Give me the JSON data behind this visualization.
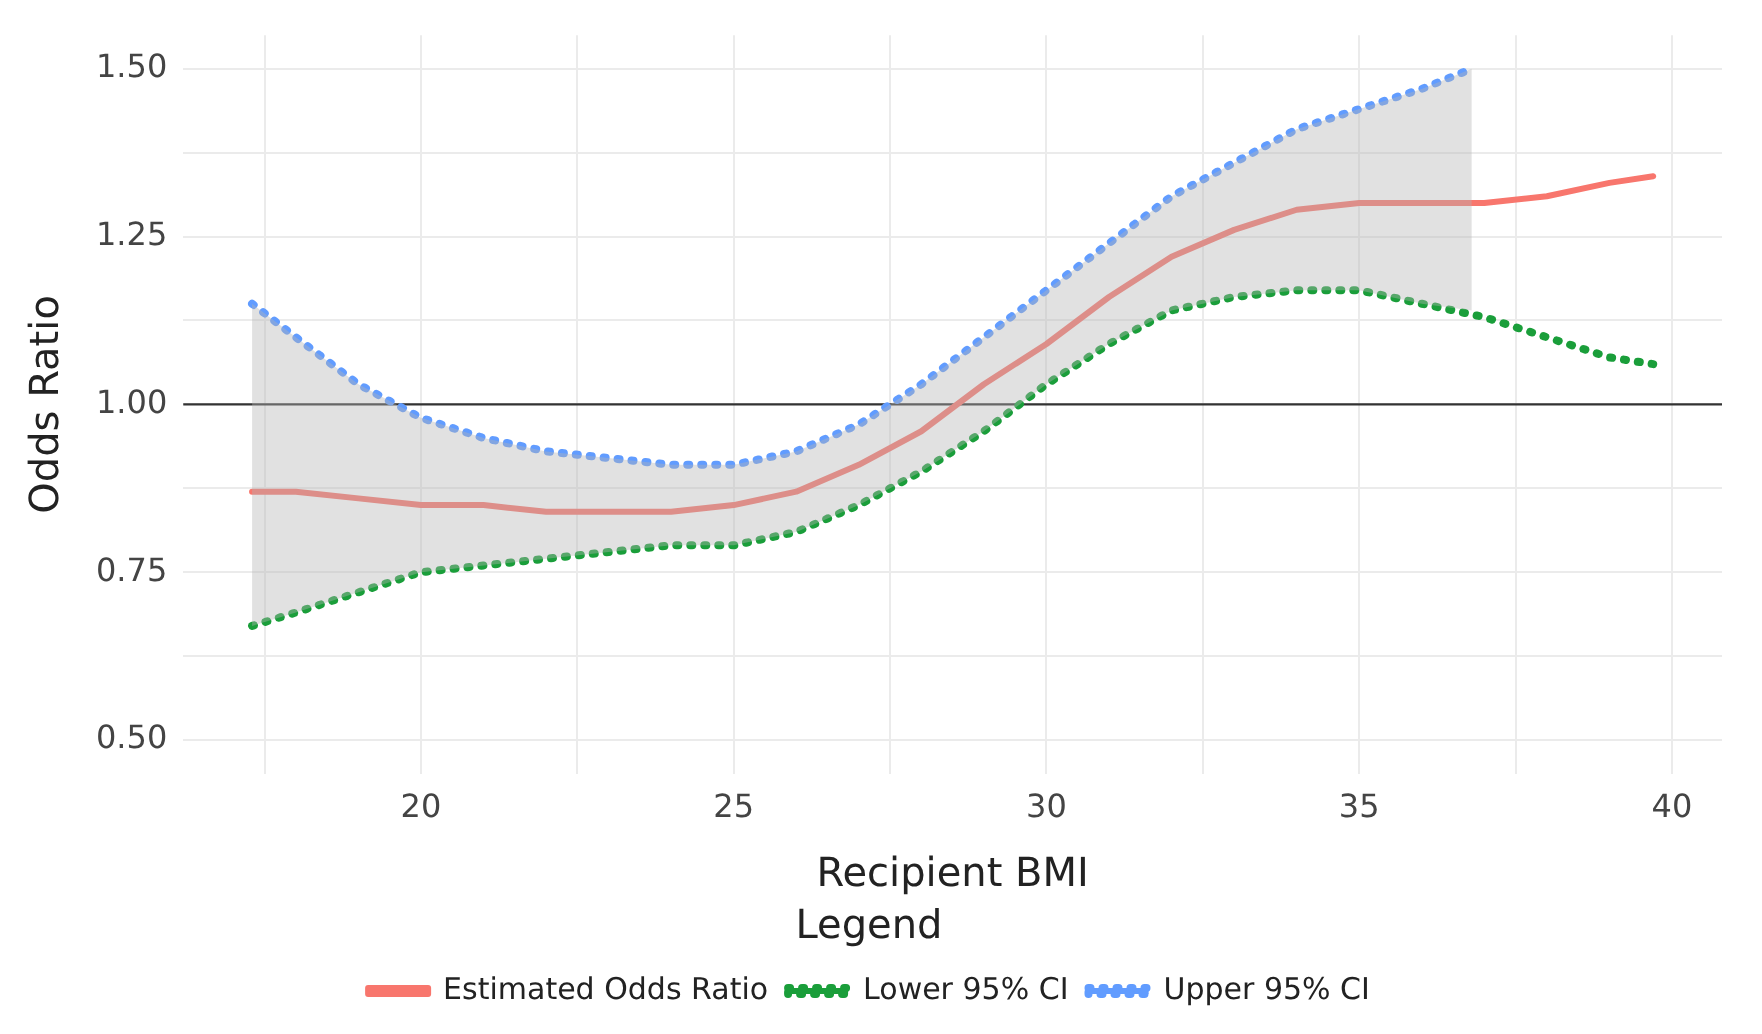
{
  "chart_data": {
    "type": "line",
    "xlabel": "Recipient BMI",
    "ylabel": "Odds Ratio",
    "legend_title": "Legend",
    "legend": "bottom",
    "grid": true,
    "xlim": [
      16.2,
      40.8
    ],
    "xticks": [
      {
        "value": 17.5,
        "label": null
      },
      20,
      {
        "value": 22.5,
        "label": null
      },
      25,
      {
        "value": 27.5,
        "label": null
      },
      30,
      {
        "value": 32.5,
        "label": null
      },
      35,
      {
        "value": 37.5,
        "label": null
      },
      40
    ],
    "ylim": [
      0.45,
      1.55
    ],
    "yticks": [
      {
        "value": 0.5,
        "label": "0.50"
      },
      {
        "value": 0.625,
        "label": null
      },
      {
        "value": 0.75,
        "label": "0.75"
      },
      {
        "value": 0.875,
        "label": null
      },
      {
        "value": 1,
        "label": "1.00"
      },
      {
        "value": 1.125,
        "label": null
      },
      {
        "value": 1.25,
        "label": "1.25"
      },
      {
        "value": 1.375,
        "label": null
      },
      {
        "value": 1.5,
        "label": "1.50"
      }
    ],
    "ref_lines": [
      {
        "axis": "y",
        "value": 1,
        "color": "#333333"
      }
    ],
    "series": [
      {
        "name": "Estimated Odds Ratio",
        "color": "#f8766d",
        "line_style": "solid",
        "x": [
          17.3,
          18,
          19,
          20,
          21,
          22,
          23,
          24,
          25,
          26,
          27,
          28,
          29,
          30,
          31,
          32,
          33,
          34,
          35,
          36,
          36.8,
          37,
          38,
          39,
          39.7
        ],
        "values": [
          0.87,
          0.87,
          0.86,
          0.85,
          0.85,
          0.84,
          0.84,
          0.84,
          0.85,
          0.87,
          0.91,
          0.96,
          1.03,
          1.09,
          1.16,
          1.22,
          1.26,
          1.29,
          1.3,
          1.3,
          1.3,
          1.3,
          1.31,
          1.33,
          1.34
        ],
        "lower": [
          0.67,
          0.69,
          0.72,
          0.75,
          0.76,
          0.77,
          0.78,
          0.79,
          0.79,
          0.81,
          0.85,
          0.9,
          0.96,
          1.03,
          1.09,
          1.14,
          1.16,
          1.17,
          1.17,
          1.15,
          1.14,
          null,
          null,
          null,
          null
        ],
        "upper": [
          1.15,
          1.1,
          1.03,
          0.98,
          0.95,
          0.93,
          0.92,
          0.91,
          0.91,
          0.93,
          0.97,
          1.03,
          1.1,
          1.17,
          1.24,
          1.31,
          1.36,
          1.41,
          1.44,
          1.47,
          1.5,
          null,
          null,
          null,
          null
        ]
      },
      {
        "name": "Lower 95% CI",
        "color": "#1a9e3a",
        "line_style": "dotted",
        "x": [
          17.3,
          18,
          19,
          20,
          21,
          22,
          23,
          24,
          25,
          26,
          27,
          28,
          29,
          30,
          31,
          32,
          33,
          34,
          35,
          36,
          37,
          38,
          39,
          39.7
        ],
        "values": [
          0.67,
          0.69,
          0.72,
          0.75,
          0.76,
          0.77,
          0.78,
          0.79,
          0.79,
          0.81,
          0.85,
          0.9,
          0.96,
          1.03,
          1.09,
          1.14,
          1.16,
          1.17,
          1.17,
          1.15,
          1.13,
          1.1,
          1.07,
          1.06
        ]
      },
      {
        "name": "Upper 95% CI",
        "color": "#619cff",
        "line_style": "dotted",
        "x": [
          17.3,
          18,
          19,
          20,
          21,
          22,
          23,
          24,
          25,
          26,
          27,
          28,
          29,
          30,
          31,
          32,
          33,
          34,
          35,
          36,
          36.8
        ],
        "values": [
          1.15,
          1.1,
          1.03,
          0.98,
          0.95,
          0.93,
          0.92,
          0.91,
          0.91,
          0.93,
          0.97,
          1.03,
          1.1,
          1.17,
          1.24,
          1.31,
          1.36,
          1.41,
          1.44,
          1.47,
          1.5
        ]
      }
    ]
  }
}
